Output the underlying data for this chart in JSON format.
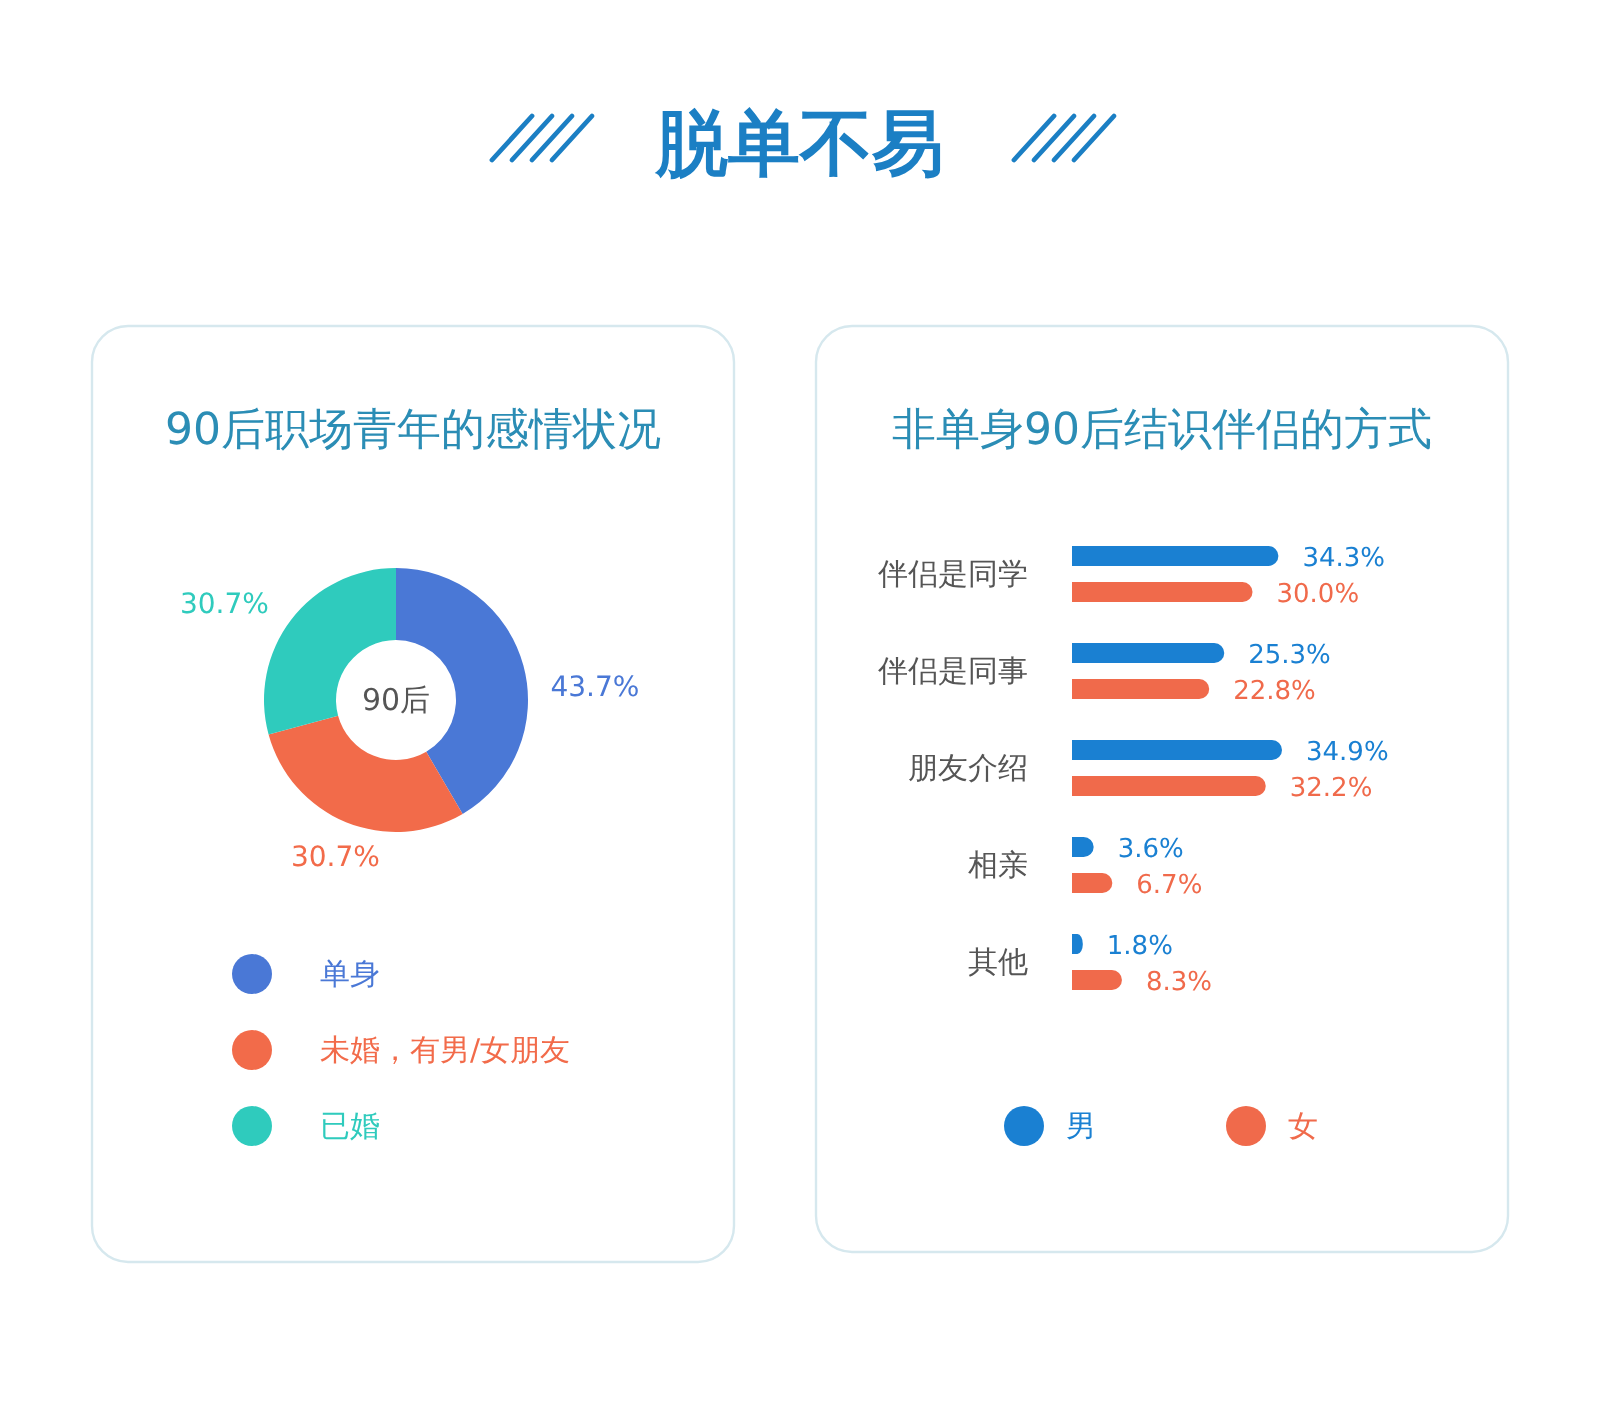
{
  "chart_data": [
    {
      "type": "other",
      "title": "脱单不易"
    },
    {
      "type": "donut",
      "title": "90后职场青年的感情状况",
      "categories": [
        "单身",
        "未婚，有男/女朋友",
        "已婚"
      ],
      "values": [
        43.7,
        30.7,
        30.7
      ],
      "colors": [
        "#4a78d6",
        "#f26b4a",
        "#2fcbbd"
      ],
      "value_labels": [
        "43.7%",
        "30.7%",
        "30.7%"
      ],
      "annotations": [
        "90后"
      ],
      "legend": "bottom"
    },
    {
      "type": "bar",
      "orientation": "horizontal",
      "title": "非单身90后结识伴侣的方式",
      "categories": [
        "伴侣是同学",
        "伴侣是同事",
        "朋友介绍",
        "相亲",
        "其他"
      ],
      "series": [
        {
          "name": "男",
          "color": "#1a80d2",
          "values": [
            34.3,
            25.3,
            34.9,
            3.6,
            1.8
          ],
          "value_labels": [
            "34.3%",
            "25.3%",
            "34.9%",
            "3.6%",
            "1.8%"
          ]
        },
        {
          "name": "女",
          "color": "#f06a4b",
          "values": [
            30.0,
            22.8,
            32.2,
            6.7,
            8.3
          ],
          "value_labels": [
            "30.0%",
            "22.8%",
            "32.2%",
            "6.7%",
            "8.3%"
          ]
        }
      ],
      "legend": "bottom"
    }
  ]
}
